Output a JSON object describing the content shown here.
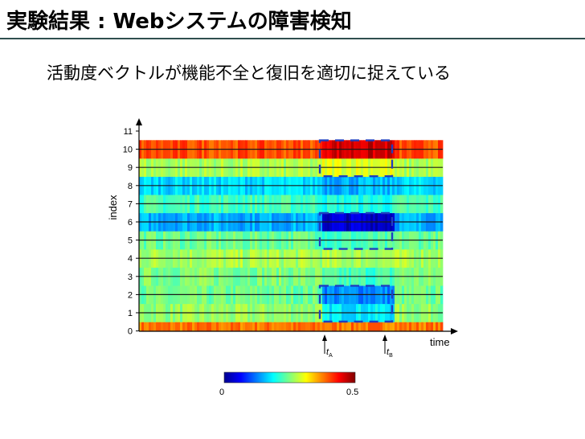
{
  "slide": {
    "title": "実験結果 : Webシステムの障害検知",
    "subtitle": "活動度ベクトルが機能不全と復旧を適切に捉えている"
  },
  "colors": {
    "title_rule": "#2f4f4f",
    "box": "#1f3fbf"
  },
  "chart_data": {
    "type": "heatmap",
    "title": "",
    "xlabel": "time",
    "ylabel": "index",
    "y_ticks": [
      "0",
      "1",
      "2",
      "3",
      "4",
      "5",
      "6",
      "7",
      "8",
      "9",
      "10",
      "11"
    ],
    "grid": "horizontal lines at each index",
    "color_range": [
      0,
      0.5
    ],
    "colorbar_ticks": [
      "0",
      "0.5"
    ],
    "colormap": "jet",
    "rows": [
      {
        "index": 0,
        "normal": 0.38,
        "failure": 0.38
      },
      {
        "index": 1,
        "normal": 0.26,
        "failure": 0.18
      },
      {
        "index": 2,
        "normal": 0.24,
        "failure": 0.13
      },
      {
        "index": 3,
        "normal": 0.25,
        "failure": 0.22
      },
      {
        "index": 4,
        "normal": 0.27,
        "failure": 0.27
      },
      {
        "index": 5,
        "normal": 0.24,
        "failure": 0.22
      },
      {
        "index": 6,
        "normal": 0.15,
        "failure": 0.04
      },
      {
        "index": 7,
        "normal": 0.22,
        "failure": 0.2
      },
      {
        "index": 8,
        "normal": 0.17,
        "failure": 0.15
      },
      {
        "index": 9,
        "normal": 0.27,
        "failure": 0.3
      },
      {
        "index": 10,
        "normal": 0.4,
        "failure": 0.46
      },
      {
        "index": 11,
        "normal": 0.33,
        "failure": 0.33
      }
    ],
    "failure_interval": {
      "start_marker": "tA",
      "end_marker": "tB"
    },
    "highlighted_indices": [
      [
        9,
        10
      ],
      [
        5,
        6
      ],
      [
        1,
        2
      ]
    ],
    "markers": [
      {
        "symbol": "t",
        "subscript": "A"
      },
      {
        "symbol": "t",
        "subscript": "B"
      }
    ]
  }
}
